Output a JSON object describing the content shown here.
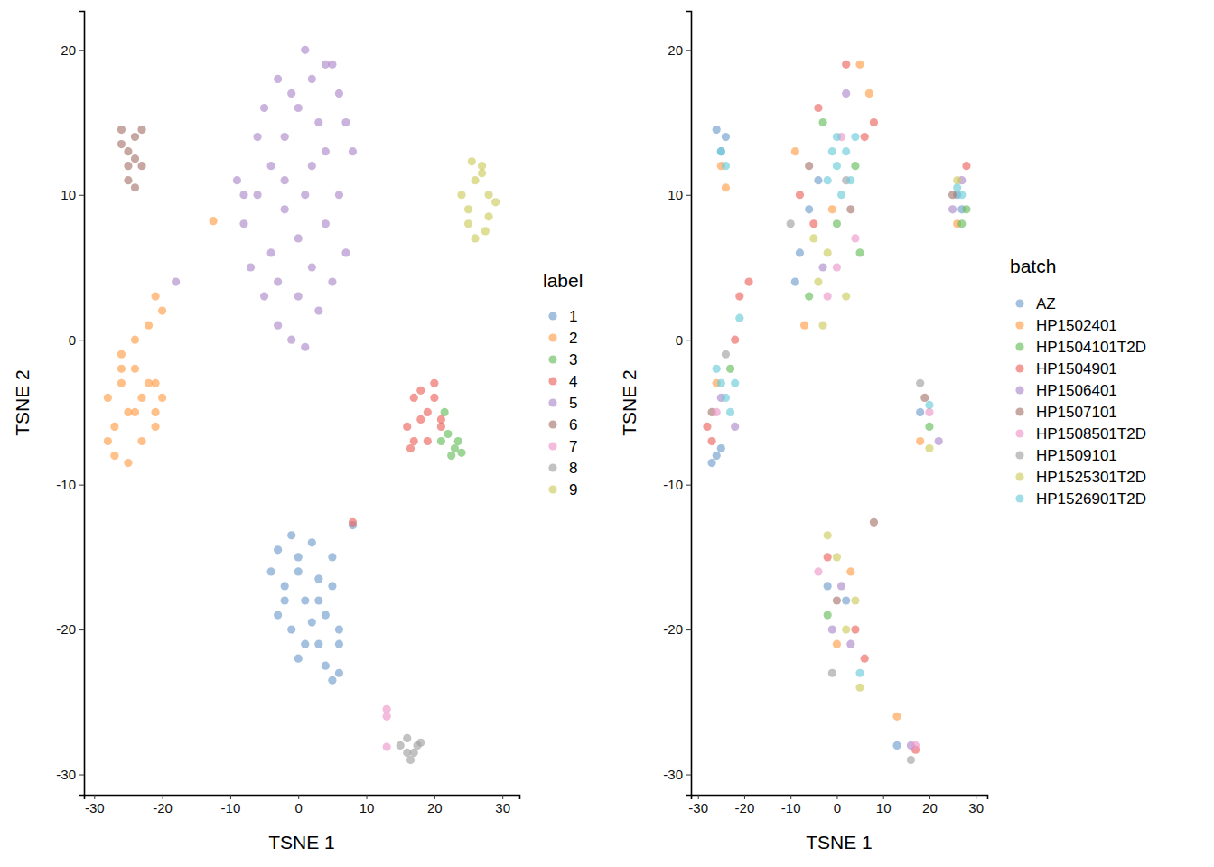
{
  "chart_data": [
    {
      "type": "scatter",
      "x_label": "TSNE 1",
      "y_label": "TSNE 2",
      "legend_title": "label",
      "legend": "right",
      "xlim": [
        -31.5,
        32.5
      ],
      "ylim": [
        -31.4,
        22.7
      ],
      "xticks": [
        -30,
        -20,
        -10,
        0,
        10,
        20,
        30
      ],
      "yticks": [
        -30,
        -20,
        -10,
        0,
        10,
        20
      ],
      "series": [
        {
          "name": "1",
          "color": "#729ECE",
          "x": [
            -4,
            -3,
            -2,
            -1,
            0,
            1,
            2,
            3,
            4,
            5,
            6,
            -3,
            -1,
            1,
            3,
            5,
            0,
            2,
            4,
            6,
            5,
            6,
            -2,
            0,
            3,
            8
          ],
          "y": [
            -16,
            -14.5,
            -17,
            -13.5,
            -15,
            -18,
            -14,
            -16.5,
            -19,
            -15,
            -20,
            -19,
            -20,
            -21,
            -18,
            -17,
            -22,
            -19.5,
            -22.5,
            -21,
            -23.5,
            -23,
            -18,
            -16,
            -21,
            -12.8
          ]
        },
        {
          "name": "2",
          "color": "#FF9E4A",
          "x": [
            -28,
            -27,
            -26,
            -25,
            -24,
            -23,
            -22,
            -21,
            -20,
            -27,
            -25,
            -23,
            -21,
            -26,
            -24,
            -22,
            -28,
            -26,
            -24,
            -21,
            -20,
            -21,
            -12.5
          ],
          "y": [
            -4,
            -6,
            -3,
            -5,
            -2,
            -4,
            -3,
            -5,
            -4,
            -8,
            -8.5,
            -7,
            -6,
            -1,
            0,
            1,
            -7,
            -2,
            -5,
            -3,
            2,
            3,
            8.2
          ]
        },
        {
          "name": "3",
          "color": "#67BF5C",
          "x": [
            21,
            22,
            23,
            24,
            22.5,
            23.5,
            21.5
          ],
          "y": [
            -7,
            -6.5,
            -7.5,
            -7.8,
            -8,
            -7,
            -5
          ]
        },
        {
          "name": "4",
          "color": "#ED665D",
          "x": [
            16,
            17,
            18,
            19,
            20,
            21,
            17,
            19,
            18,
            20,
            16.5,
            21,
            8
          ],
          "y": [
            -6,
            -4,
            -3.5,
            -5,
            -4,
            -6,
            -7,
            -7,
            -5.5,
            -3,
            -7.5,
            -5.5,
            -12.6
          ]
        },
        {
          "name": "5",
          "color": "#AD8BC9",
          "x": [
            -8,
            -6,
            -4,
            -2,
            0,
            2,
            4,
            6,
            -7,
            -5,
            -3,
            -1,
            1,
            3,
            5,
            7,
            -9,
            -6,
            -2,
            2,
            6,
            8,
            -4,
            0,
            4,
            -1,
            3,
            1,
            -3,
            5,
            0,
            -5,
            -8,
            -3,
            2,
            7,
            4,
            -2,
            1,
            -18
          ],
          "y": [
            8,
            10,
            12,
            14,
            16,
            18,
            19,
            17,
            5,
            3,
            1,
            0,
            -0.5,
            2,
            4,
            6,
            11,
            14,
            9,
            12,
            10,
            13,
            6,
            7,
            8,
            17,
            15,
            20,
            18,
            19,
            3,
            16,
            10,
            4,
            5,
            15,
            13,
            11,
            10,
            4
          ]
        },
        {
          "name": "6",
          "color": "#A8786E",
          "x": [
            -26,
            -25,
            -24,
            -23,
            -25,
            -24,
            -26,
            -24,
            -23,
            -25
          ],
          "y": [
            14.5,
            13,
            14,
            12,
            11,
            10.5,
            13.5,
            12.5,
            14.5,
            12
          ]
        },
        {
          "name": "7",
          "color": "#ED97CA",
          "x": [
            13,
            13,
            13
          ],
          "y": [
            -25.5,
            -26,
            -28.1
          ]
        },
        {
          "name": "8",
          "color": "#A2A2A2",
          "x": [
            15,
            16,
            17,
            18,
            16.5,
            17.5,
            16
          ],
          "y": [
            -28,
            -27.5,
            -28.5,
            -27.8,
            -29,
            -28,
            -28.5
          ]
        },
        {
          "name": "9",
          "color": "#CDCC5D",
          "x": [
            24,
            25,
            26,
            27,
            28,
            29,
            25,
            27,
            26,
            28,
            25.5,
            27.5
          ],
          "y": [
            10,
            9,
            11,
            12,
            10,
            9.5,
            8,
            11.5,
            7,
            8.5,
            12.3,
            7.5
          ]
        }
      ]
    },
    {
      "type": "scatter",
      "x_label": "TSNE 1",
      "y_label": "TSNE 2",
      "legend_title": "batch",
      "legend": "right",
      "xlim": [
        -31.5,
        32.5
      ],
      "ylim": [
        -31.4,
        22.7
      ],
      "xticks": [
        -30,
        -20,
        -10,
        0,
        10,
        20,
        30
      ],
      "yticks": [
        -30,
        -20,
        -10,
        0,
        10,
        20
      ],
      "series": [
        {
          "name": "AZ",
          "color": "#729ECE",
          "x": [
            -26,
            -25,
            -24,
            -27,
            -26,
            -25,
            -8,
            -6,
            -9,
            -4,
            2,
            -2,
            18,
            26,
            13,
            27
          ],
          "y": [
            14.5,
            13,
            14,
            -8.5,
            -8,
            -7.5,
            6,
            9,
            4,
            11,
            -18,
            -17,
            -5,
            10,
            -28,
            9
          ]
        },
        {
          "name": "HP1502401",
          "color": "#FF9E4A",
          "x": [
            -25,
            -24,
            -9,
            5,
            7,
            -1,
            3,
            0,
            26,
            13,
            18,
            -26,
            -7
          ],
          "y": [
            12,
            10.5,
            13,
            19,
            17,
            9,
            -16,
            -21,
            8,
            -26,
            -7,
            -3,
            1
          ]
        },
        {
          "name": "HP1504101T2D",
          "color": "#67BF5C",
          "x": [
            -6,
            0,
            4,
            27,
            28,
            -2,
            20,
            -23,
            5,
            -3
          ],
          "y": [
            3,
            8,
            12,
            8,
            9,
            -19,
            -6,
            -2,
            6,
            15
          ]
        },
        {
          "name": "HP1504901",
          "color": "#ED665D",
          "x": [
            -27,
            -28,
            -22,
            -21,
            -19,
            -8,
            -4,
            2,
            6,
            8,
            -2,
            4,
            6,
            28,
            17,
            -5
          ],
          "y": [
            -7,
            -6,
            0,
            3,
            4,
            10,
            16,
            19,
            14,
            15,
            -15,
            -20,
            -22,
            12,
            -28.3,
            8
          ]
        },
        {
          "name": "HP1506401",
          "color": "#AD8BC9",
          "x": [
            -25,
            -22,
            1,
            3,
            -1,
            27,
            25,
            22,
            -3,
            2,
            16
          ],
          "y": [
            -4,
            -6,
            -17,
            -21,
            -20,
            11,
            9,
            -7,
            5,
            17,
            -28
          ]
        },
        {
          "name": "HP1507101",
          "color": "#A8786E",
          "x": [
            -27,
            8,
            -6,
            3,
            19,
            0,
            25
          ],
          "y": [
            -5,
            -12.6,
            12,
            9,
            -4,
            -18,
            10
          ]
        },
        {
          "name": "HP1508501T2D",
          "color": "#ED97CA",
          "x": [
            -26,
            -2,
            0,
            4,
            -4,
            17,
            20,
            1
          ],
          "y": [
            -5,
            3,
            5,
            7,
            -16,
            -28,
            -5,
            14
          ]
        },
        {
          "name": "HP1509101",
          "color": "#A2A2A2",
          "x": [
            -10,
            16,
            18,
            -24,
            -1,
            2
          ],
          "y": [
            8,
            -29,
            -3,
            -1,
            -23,
            11
          ]
        },
        {
          "name": "HP1525301T2D",
          "color": "#CDCC5D",
          "x": [
            -4,
            -2,
            2,
            -3,
            0,
            2,
            4,
            -2,
            5,
            20,
            26,
            -5
          ],
          "y": [
            4,
            6,
            3,
            1,
            -15,
            -20,
            -18,
            -13.5,
            -24,
            -7.5,
            11,
            7
          ]
        },
        {
          "name": "HP1526901T2D",
          "color": "#6DCCDA",
          "x": [
            -25,
            -24,
            -23,
            -22,
            -26,
            -21,
            0,
            2,
            1,
            3,
            -1,
            4,
            5,
            -25,
            -24,
            26,
            27,
            20,
            -2,
            0
          ],
          "y": [
            -3,
            -4,
            -5,
            -3,
            -2,
            1.5,
            12,
            13,
            10,
            11,
            13,
            14,
            -23,
            13,
            12,
            10.5,
            10,
            -4.5,
            11,
            14
          ]
        }
      ]
    }
  ]
}
